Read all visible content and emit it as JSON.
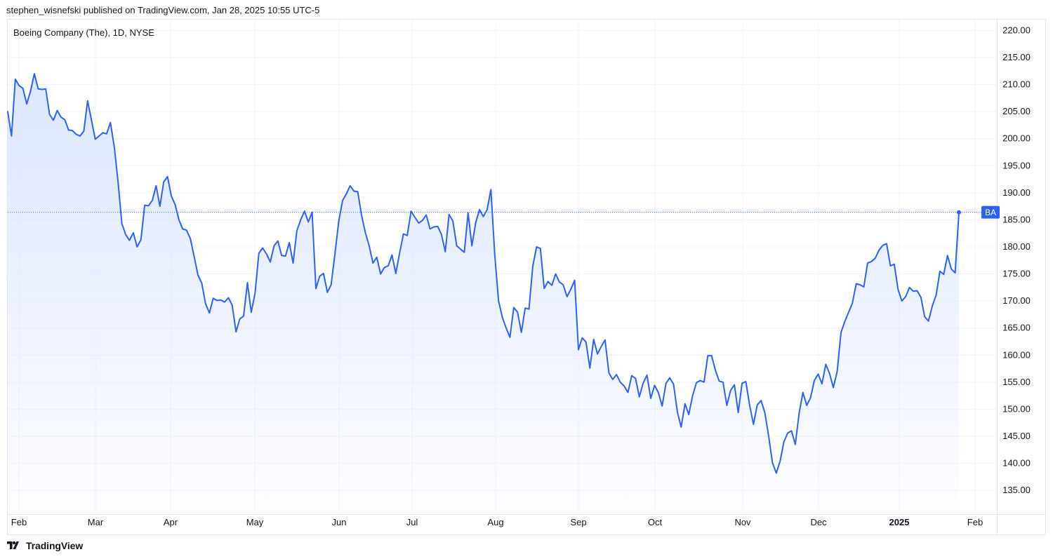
{
  "header": {
    "publisher_line": "stephen_wisnefski published on TradingView.com, Jan 28, 2025 10:55 UTC-5"
  },
  "chart_title": "Boeing Company (The), 1D, NYSE",
  "footer": {
    "brand": "TradingView",
    "logo_icon": "tradingview-logo-icon"
  },
  "colors": {
    "line": "#2962ff",
    "fill_top": "#d6e1ff",
    "grid": "#f0f3fa",
    "border": "#e0e3eb",
    "badge": "#2962ff"
  },
  "chart_data": {
    "type": "area",
    "symbol": "BA",
    "last_value": 186.4,
    "ylim": [
      131,
      222
    ],
    "y_ticks": [
      "220.00",
      "215.00",
      "210.00",
      "205.00",
      "200.00",
      "195.00",
      "190.00",
      "185.00",
      "180.00",
      "175.00",
      "170.00",
      "165.00",
      "160.00",
      "155.00",
      "150.00",
      "145.00",
      "140.00",
      "135.00"
    ],
    "x_ticks": [
      {
        "label": "Feb",
        "bold": false
      },
      {
        "label": "Mar",
        "bold": false
      },
      {
        "label": "Apr",
        "bold": false
      },
      {
        "label": "May",
        "bold": false
      },
      {
        "label": "Jun",
        "bold": false
      },
      {
        "label": "Jul",
        "bold": false
      },
      {
        "label": "Aug",
        "bold": false
      },
      {
        "label": "Sep",
        "bold": false
      },
      {
        "label": "Oct",
        "bold": false
      },
      {
        "label": "Nov",
        "bold": false
      },
      {
        "label": "Dec",
        "bold": false
      },
      {
        "label": "2025",
        "bold": true
      },
      {
        "label": "Feb",
        "bold": false
      }
    ],
    "x_tick_pos": [
      0,
      1,
      2,
      3,
      4,
      5,
      6,
      7,
      8,
      9,
      10,
      11,
      12
    ],
    "values": [
      205.0,
      200.5,
      211.0,
      209.8,
      209.3,
      206.4,
      208.8,
      212.0,
      209.2,
      209.1,
      209.2,
      204.5,
      203.4,
      205.2,
      204.0,
      203.5,
      201.6,
      201.5,
      200.8,
      200.5,
      201.4,
      207.0,
      203.5,
      199.9,
      200.5,
      201.1,
      200.9,
      203.0,
      198.5,
      192.0,
      184.3,
      182.3,
      181.2,
      182.6,
      180.0,
      181.3,
      187.7,
      187.6,
      188.6,
      191.3,
      187.5,
      192.0,
      193.0,
      189.4,
      187.8,
      185.0,
      183.3,
      183.1,
      181.5,
      178.2,
      174.8,
      173.3,
      169.5,
      167.8,
      170.5,
      170.1,
      170.2,
      169.8,
      170.6,
      169.2,
      164.3,
      166.7,
      167.2,
      173.4,
      167.9,
      171.4,
      178.8,
      179.8,
      178.7,
      177.2,
      180.2,
      181.1,
      178.4,
      178.3,
      180.8,
      177.0,
      183.0,
      185.0,
      186.6,
      184.6,
      186.4,
      172.3,
      174.6,
      175.1,
      171.6,
      173.0,
      178.7,
      184.7,
      188.6,
      189.8,
      191.3,
      190.3,
      190.2,
      185.8,
      182.6,
      180.2,
      177.0,
      178.1,
      175.0,
      176.2,
      176.5,
      178.5,
      175.1,
      178.9,
      182.4,
      182.1,
      186.6,
      185.5,
      184.4,
      184.9,
      185.9,
      183.3,
      183.7,
      183.8,
      182.3,
      179.1,
      186.0,
      184.8,
      180.2,
      179.6,
      179.0,
      186.3,
      180.2,
      184.5,
      186.9,
      185.6,
      186.9,
      190.6,
      178.5,
      170.0,
      167.0,
      165.0,
      163.3,
      168.8,
      167.9,
      164.2,
      168.7,
      168.5,
      176.5,
      180.0,
      179.7,
      172.3,
      173.6,
      172.9,
      175.0,
      173.5,
      173.0,
      170.8,
      172.2,
      173.8,
      161.0,
      163.2,
      162.4,
      157.6,
      162.9,
      160.2,
      161.6,
      162.8,
      156.7,
      155.5,
      156.4,
      155.0,
      154.3,
      153.1,
      156.2,
      155.7,
      152.3,
      154.8,
      156.3,
      152.0,
      154.4,
      153.1,
      150.6,
      154.8,
      155.8,
      154.6,
      149.5,
      146.7,
      151.0,
      149.0,
      152.5,
      154.9,
      155.3,
      155.0,
      159.9,
      159.9,
      157.2,
      155.2,
      155.0,
      150.7,
      153.5,
      154.5,
      149.4,
      154.8,
      155.1,
      150.7,
      147.2,
      150.8,
      151.6,
      149.3,
      145.0,
      140.1,
      138.2,
      140.4,
      144.0,
      145.6,
      146.0,
      143.5,
      149.3,
      153.1,
      150.7,
      152.1,
      155.3,
      156.5,
      154.7,
      158.3,
      156.6,
      154.0,
      157.0,
      164.2,
      166.2,
      167.9,
      169.6,
      173.2,
      173.0,
      172.6,
      177.0,
      177.3,
      177.9,
      179.4,
      180.3,
      180.6,
      176.5,
      176.8,
      172.1,
      170.0,
      170.8,
      172.5,
      171.8,
      171.9,
      170.7,
      167.1,
      166.3,
      169.1,
      171.1,
      175.5,
      174.9,
      178.4,
      175.9,
      175.2,
      186.4
    ]
  }
}
